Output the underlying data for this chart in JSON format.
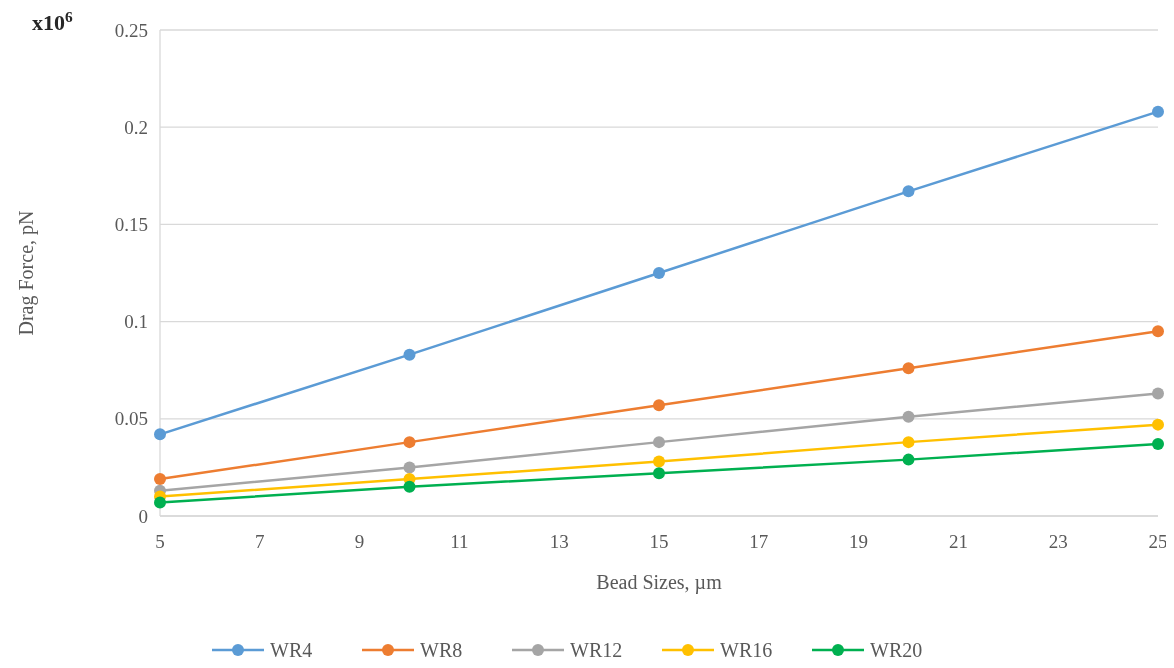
{
  "chart_data": {
    "type": "line",
    "xlabel": "Bead Sizes, µm",
    "ylabel": "Drag Force, pN",
    "annotations": [
      "x10$^{6}$"
    ],
    "x": [
      5,
      10,
      15,
      20,
      25
    ],
    "series": [
      {
        "name": "WR4",
        "color": "#5b9bd5",
        "values": [
          0.042,
          0.083,
          0.125,
          0.167,
          0.208
        ]
      },
      {
        "name": "WR8",
        "color": "#ed7d31",
        "values": [
          0.019,
          0.038,
          0.057,
          0.076,
          0.095
        ]
      },
      {
        "name": "WR12",
        "color": "#a5a5a5",
        "values": [
          0.013,
          0.025,
          0.038,
          0.051,
          0.063
        ]
      },
      {
        "name": "WR16",
        "color": "#ffc000",
        "values": [
          0.01,
          0.019,
          0.028,
          0.038,
          0.047
        ]
      },
      {
        "name": "WR20",
        "color": "#00b050",
        "values": [
          0.007,
          0.015,
          0.022,
          0.029,
          0.037
        ]
      }
    ],
    "xlim": [
      5,
      25
    ],
    "xticks": [
      5,
      7,
      9,
      11,
      13,
      15,
      17,
      19,
      21,
      23,
      25
    ],
    "ylim": [
      0,
      0.25
    ],
    "yticks": [
      0,
      0.05,
      0.1,
      0.15,
      0.2,
      0.25
    ],
    "grid": "y",
    "legend": "bottom",
    "marker": "circle",
    "line_style": "solid"
  }
}
